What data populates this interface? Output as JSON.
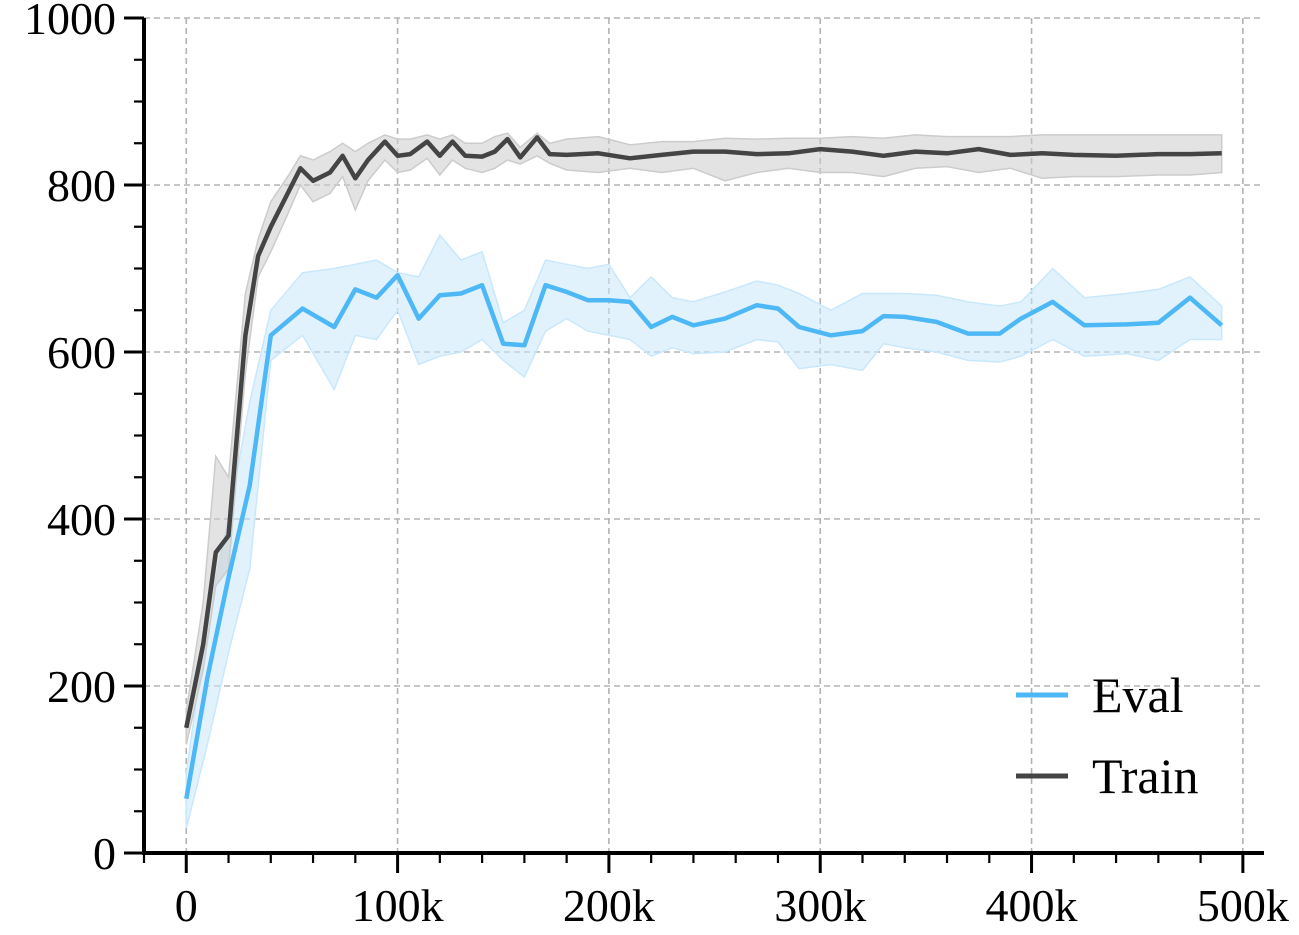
{
  "chart_data": {
    "type": "line",
    "title": "",
    "xlabel": "",
    "ylabel": "",
    "xlim": [
      -20000,
      510000
    ],
    "ylim": [
      0,
      1000
    ],
    "xticks": [
      0,
      100000,
      200000,
      300000,
      400000,
      500000
    ],
    "xtick_labels": [
      "0",
      "100k",
      "200k",
      "300k",
      "400k",
      "500k"
    ],
    "yticks": [
      0,
      200,
      400,
      600,
      800,
      1000
    ],
    "ytick_labels": [
      "0",
      "200",
      "400",
      "600",
      "800",
      "1000"
    ],
    "grid": true,
    "legend_position": "lower-right",
    "series": [
      {
        "name": "Eval",
        "color": "#4db8f5",
        "x": [
          0,
          10000,
          20000,
          30000,
          40000,
          55000,
          70000,
          80000,
          90000,
          100000,
          110000,
          120000,
          130000,
          140000,
          150000,
          160000,
          170000,
          180000,
          190000,
          200000,
          210000,
          220000,
          230000,
          240000,
          255000,
          270000,
          280000,
          290000,
          305000,
          320000,
          330000,
          340000,
          355000,
          370000,
          385000,
          395000,
          410000,
          425000,
          445000,
          460000,
          475000,
          490000
        ],
        "y": [
          65,
          210,
          330,
          440,
          620,
          652,
          630,
          675,
          665,
          692,
          640,
          668,
          670,
          680,
          610,
          608,
          680,
          672,
          662,
          662,
          660,
          630,
          642,
          632,
          640,
          656,
          652,
          630,
          620,
          625,
          643,
          642,
          636,
          622,
          622,
          640,
          660,
          632,
          633,
          635,
          665,
          632
        ],
        "lower": [
          30,
          130,
          240,
          340,
          590,
          620,
          555,
          620,
          615,
          650,
          585,
          595,
          600,
          615,
          590,
          570,
          625,
          640,
          625,
          620,
          615,
          595,
          605,
          598,
          600,
          615,
          612,
          580,
          585,
          578,
          610,
          605,
          600,
          590,
          588,
          595,
          615,
          595,
          598,
          590,
          615,
          615
        ],
        "upper": [
          95,
          280,
          400,
          540,
          650,
          695,
          700,
          705,
          710,
          695,
          690,
          740,
          710,
          720,
          635,
          650,
          710,
          705,
          700,
          705,
          665,
          690,
          665,
          660,
          672,
          685,
          680,
          670,
          650,
          670,
          670,
          670,
          668,
          660,
          655,
          660,
          700,
          665,
          670,
          675,
          690,
          655
        ]
      },
      {
        "name": "Train",
        "color": "#444444",
        "x": [
          0,
          8000,
          14000,
          20000,
          28000,
          34000,
          40000,
          48000,
          54000,
          60000,
          68000,
          74000,
          80000,
          86000,
          94000,
          100000,
          106000,
          114000,
          120000,
          126000,
          132000,
          140000,
          146000,
          152000,
          158000,
          166000,
          172000,
          180000,
          195000,
          210000,
          225000,
          240000,
          255000,
          270000,
          285000,
          300000,
          315000,
          330000,
          345000,
          360000,
          375000,
          390000,
          405000,
          420000,
          440000,
          460000,
          475000,
          490000
        ],
        "y": [
          150,
          250,
          360,
          380,
          620,
          715,
          750,
          790,
          820,
          805,
          815,
          835,
          808,
          830,
          852,
          835,
          837,
          852,
          835,
          852,
          835,
          834,
          840,
          855,
          833,
          857,
          837,
          836,
          838,
          832,
          836,
          840,
          840,
          837,
          838,
          843,
          840,
          835,
          840,
          838,
          843,
          836,
          838,
          836,
          835,
          837,
          837,
          838
        ],
        "lower": [
          130,
          220,
          320,
          340,
          575,
          690,
          720,
          765,
          800,
          780,
          790,
          810,
          770,
          805,
          830,
          815,
          818,
          832,
          812,
          830,
          820,
          815,
          820,
          830,
          825,
          835,
          826,
          818,
          815,
          820,
          815,
          820,
          805,
          815,
          820,
          815,
          815,
          810,
          820,
          822,
          815,
          820,
          808,
          810,
          810,
          812,
          812,
          815
        ],
        "upper": [
          170,
          300,
          475,
          450,
          670,
          735,
          780,
          810,
          835,
          830,
          840,
          850,
          840,
          850,
          860,
          855,
          855,
          860,
          855,
          860,
          850,
          850,
          858,
          862,
          845,
          862,
          850,
          855,
          858,
          848,
          852,
          852,
          856,
          855,
          856,
          856,
          858,
          856,
          860,
          858,
          858,
          858,
          860,
          860,
          860,
          860,
          860,
          860
        ]
      }
    ]
  }
}
